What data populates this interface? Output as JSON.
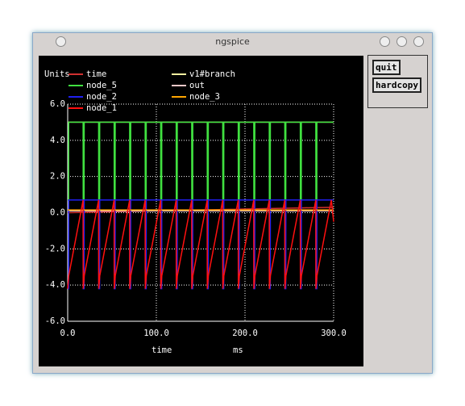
{
  "window": {
    "title": "ngspice"
  },
  "buttons": [
    "quit",
    "hardcopy"
  ],
  "chart_data": {
    "type": "line",
    "y_label": "Units",
    "x_label": "time",
    "x_unit": "ms",
    "x": [
      0,
      1,
      1.1,
      17.4,
      17.5,
      18.5,
      18.6,
      34.9,
      35,
      36,
      36.1,
      52.4,
      52.5,
      53.5,
      53.6,
      69.9,
      70,
      71,
      71.1,
      87.4,
      87.5,
      88.5,
      88.6,
      104.9,
      105,
      106,
      106.1,
      122.4,
      122.5,
      123.5,
      123.6,
      139.9,
      140,
      141,
      141.1,
      157.4,
      157.5,
      158.5,
      158.6,
      174.9,
      175,
      176,
      176.1,
      192.4,
      192.5,
      193.5,
      193.6,
      209.9,
      210,
      211,
      211.1,
      227.4,
      227.5,
      228.5,
      228.6,
      244.9,
      245,
      246,
      246.1,
      262.4,
      262.5,
      263.5,
      263.6,
      279.9,
      280,
      281,
      281.1,
      297.4,
      300
    ],
    "xlim": [
      0,
      300
    ],
    "xticks": [
      {
        "value": 0,
        "label": "0.0"
      },
      {
        "value": 100,
        "label": "100.0"
      },
      {
        "value": 200,
        "label": "200.0"
      },
      {
        "value": 300,
        "label": "300.0"
      }
    ],
    "ylim": [
      -6,
      6
    ],
    "yticks": [
      {
        "value": -6,
        "label": "-6.0"
      },
      {
        "value": -4,
        "label": "-4.0"
      },
      {
        "value": -2,
        "label": "-2.0"
      },
      {
        "value": 0,
        "label": "0.0"
      },
      {
        "value": 2,
        "label": "2.0"
      },
      {
        "value": 4,
        "label": "4.0"
      },
      {
        "value": 6,
        "label": "6.0"
      }
    ],
    "grid": true,
    "series": [
      {
        "name": "time",
        "color": "#d03030",
        "values": [
          0,
          0.001,
          0.0011,
          0.0174,
          0.0175,
          0.0185,
          0.0186,
          0.0349,
          0.035,
          0.036,
          0.0361,
          0.0524,
          0.0525,
          0.0535,
          0.0536,
          0.0699,
          0.07,
          0.071,
          0.0711,
          0.0874,
          0.0875,
          0.0885,
          0.0886,
          0.1049,
          0.105,
          0.106,
          0.1061,
          0.1224,
          0.1225,
          0.1235,
          0.1236,
          0.1399,
          0.14,
          0.141,
          0.1411,
          0.1574,
          0.1575,
          0.1585,
          0.1586,
          0.1749,
          0.175,
          0.176,
          0.1761,
          0.1924,
          0.1925,
          0.1935,
          0.1936,
          0.2099,
          0.21,
          0.211,
          0.2111,
          0.2274,
          0.2275,
          0.2285,
          0.2286,
          0.2449,
          0.245,
          0.246,
          0.2461,
          0.2624,
          0.2625,
          0.2635,
          0.2636,
          0.2799,
          0.28,
          0.281,
          0.2811,
          0.2974,
          0.3
        ]
      },
      {
        "name": "v1#branch",
        "color": "#f5f0a0",
        "values": [
          5,
          5,
          5,
          5,
          5,
          5,
          5,
          5,
          5,
          5,
          5,
          5,
          5,
          5,
          5,
          5,
          5,
          5,
          5,
          5,
          5,
          5,
          5,
          5,
          5,
          5,
          5,
          5,
          5,
          5,
          5,
          5,
          5,
          5,
          5,
          5,
          5,
          5,
          5,
          5,
          5,
          5,
          5,
          5,
          5,
          5,
          5,
          5,
          5,
          5,
          5,
          5,
          5,
          5,
          5,
          5,
          5,
          5,
          5,
          5,
          5,
          5,
          5,
          5,
          5,
          5,
          5,
          5,
          5
        ]
      },
      {
        "name": "node_5",
        "color": "#40e040",
        "values": [
          0.7,
          0.7,
          5,
          5,
          0.7,
          0.7,
          5,
          5,
          0.7,
          0.7,
          5,
          5,
          0.7,
          0.7,
          5,
          5,
          0.7,
          0.7,
          5,
          5,
          0.7,
          0.7,
          5,
          5,
          0.7,
          0.7,
          5,
          5,
          0.7,
          0.7,
          5,
          5,
          0.7,
          0.7,
          5,
          5,
          0.7,
          0.7,
          5,
          5,
          0.7,
          0.7,
          5,
          5,
          0.7,
          0.7,
          5,
          5,
          0.7,
          0.7,
          5,
          5,
          0.7,
          0.7,
          5,
          5,
          0.7,
          0.7,
          5,
          5,
          0.7,
          0.7,
          5,
          5,
          0.7,
          0.7,
          5,
          5,
          5
        ]
      },
      {
        "name": "out",
        "color": "#f4c8c8",
        "values": [
          0.1,
          0.1,
          0.1,
          0.1,
          0.1,
          0.1,
          0.1,
          0.1,
          0.1,
          0.1,
          0.1,
          0.1,
          0.1,
          0.1,
          0.1,
          0.1,
          0.1,
          0.1,
          0.1,
          0.1,
          0.1,
          0.1,
          0.1,
          0.1,
          0.1,
          0.1,
          0.1,
          0.1,
          0.1,
          0.1,
          0.1,
          0.1,
          0.1,
          0.1,
          0.1,
          0.1,
          0.1,
          0.1,
          0.1,
          0.1,
          0.1,
          0.1,
          0.1,
          0.1,
          0.1,
          0.1,
          0.1,
          0.1,
          0.1,
          0.1,
          0.1,
          0.1,
          0.1,
          0.1,
          0.1,
          0.1,
          0.1,
          0.1,
          0.1,
          0.1,
          0.1,
          0.1,
          0.1,
          0.1,
          0.1,
          0.1,
          0.1,
          0.1,
          0.1
        ]
      },
      {
        "name": "node_2",
        "color": "#2020f0",
        "values": [
          -4.2,
          -4.2,
          0.7,
          0.7,
          -4.2,
          -4.2,
          0.7,
          0.7,
          -4.2,
          -4.2,
          0.7,
          0.7,
          -4.2,
          -4.2,
          0.7,
          0.7,
          -4.2,
          -4.2,
          0.7,
          0.7,
          -4.2,
          -4.2,
          0.7,
          0.7,
          -4.2,
          -4.2,
          0.7,
          0.7,
          -4.2,
          -4.2,
          0.7,
          0.7,
          -4.2,
          -4.2,
          0.7,
          0.7,
          -4.2,
          -4.2,
          0.7,
          0.7,
          -4.2,
          -4.2,
          0.7,
          0.7,
          -4.2,
          -4.2,
          0.7,
          0.7,
          -4.2,
          -4.2,
          0.7,
          0.7,
          -4.2,
          -4.2,
          0.7,
          0.7,
          -4.2,
          -4.2,
          0.7,
          0.7,
          -4.2,
          -4.2,
          0.7,
          0.7,
          -4.2,
          -4.2,
          0.7,
          0.7,
          0.7
        ]
      },
      {
        "name": "node_3",
        "color": "#ffa500",
        "values": [
          0.15,
          0.15,
          0.15,
          0.15,
          0.15,
          0.15,
          0.15,
          0.15,
          0.15,
          0.15,
          0.15,
          0.15,
          0.15,
          0.15,
          0.15,
          0.15,
          0.15,
          0.15,
          0.15,
          0.15,
          0.15,
          0.15,
          0.15,
          0.15,
          0.15,
          0.15,
          0.15,
          0.15,
          0.15,
          0.15,
          0.15,
          0.15,
          0.15,
          0.15,
          0.15,
          0.15,
          0.15,
          0.15,
          0.15,
          0.15,
          0.15,
          0.15,
          0.15,
          0.15,
          0.15,
          0.15,
          0.15,
          0.15,
          0.15,
          0.15,
          0.15,
          0.15,
          0.15,
          0.15,
          0.15,
          0.15,
          0.15,
          0.15,
          0.15,
          0.15,
          0.15,
          0.15,
          0.15,
          0.15,
          0.15,
          0.15,
          0.15,
          0.15,
          0.15
        ]
      },
      {
        "name": "node_1",
        "color": "#ff1010",
        "values": [
          -4.2,
          -3.6,
          -3.5,
          0.7,
          -4.2,
          -3.6,
          -3.5,
          0.7,
          -4.2,
          -3.6,
          -3.5,
          0.7,
          -4.2,
          -3.6,
          -3.5,
          0.7,
          -4.2,
          -3.6,
          -3.5,
          0.7,
          -4.2,
          -3.6,
          -3.5,
          0.7,
          -4.2,
          -3.6,
          -3.5,
          0.7,
          -4.2,
          -3.6,
          -3.5,
          0.7,
          -4.2,
          -3.6,
          -3.5,
          0.7,
          -4.2,
          -3.6,
          -3.5,
          0.7,
          -4.2,
          -3.6,
          -3.5,
          0.7,
          -4.2,
          -3.6,
          -3.5,
          0.7,
          -4.2,
          -3.6,
          -3.5,
          0.7,
          -4.2,
          -3.6,
          -3.5,
          0.7,
          -4.2,
          -3.6,
          -3.5,
          0.7,
          -4.2,
          -3.6,
          -3.5,
          0.7,
          -4.2,
          -3.6,
          -3.5,
          0.7,
          -0.5
        ]
      }
    ]
  }
}
